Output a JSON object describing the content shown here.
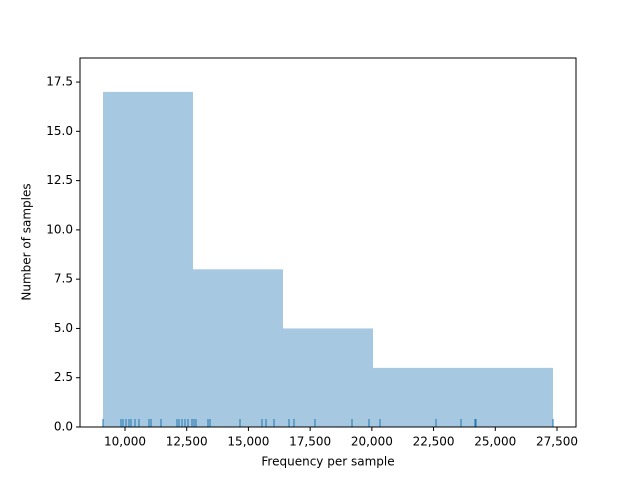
{
  "chart_data": {
    "type": "histogram",
    "xlabel": "Frequency per sample",
    "ylabel": "Number of samples",
    "bins": [
      9109,
      12755,
      16400,
      20046,
      23692,
      27338
    ],
    "values": [
      17,
      8,
      5,
      3,
      3
    ],
    "color": "#a6c8e0",
    "rug": [
      9109,
      9838,
      9919,
      10041,
      10162,
      10243,
      10405,
      10567,
      10972,
      11053,
      11458,
      12106,
      12187,
      12309,
      12430,
      12552,
      12714,
      12795,
      12876,
      13362,
      13443,
      14658,
      15550,
      15712,
      16036,
      16643,
      16846,
      17697,
      19196,
      19884,
      20330,
      22598,
      23611,
      24178,
      24218,
      27338
    ],
    "rug_color": "#1f77b4",
    "xlim": [
      8177,
      28270
    ],
    "ylim": [
      0,
      18.72
    ],
    "xticks": [
      {
        "value": 10000,
        "label": "10,000"
      },
      {
        "value": 12500,
        "label": "12,500"
      },
      {
        "value": 15000,
        "label": "15,000"
      },
      {
        "value": 17500,
        "label": "17,500"
      },
      {
        "value": 20000,
        "label": "20,000"
      },
      {
        "value": 22500,
        "label": "22,500"
      },
      {
        "value": 25000,
        "label": "25,000"
      },
      {
        "value": 27500,
        "label": "27,500"
      }
    ],
    "yticks": [
      {
        "value": 0,
        "label": "0.0"
      },
      2.5,
      {
        "value": 5,
        "label": "5.0"
      },
      7.5,
      {
        "value": 10,
        "label": "10.0"
      },
      12.5,
      {
        "value": 15,
        "label": "15.0"
      },
      17.5
    ]
  }
}
